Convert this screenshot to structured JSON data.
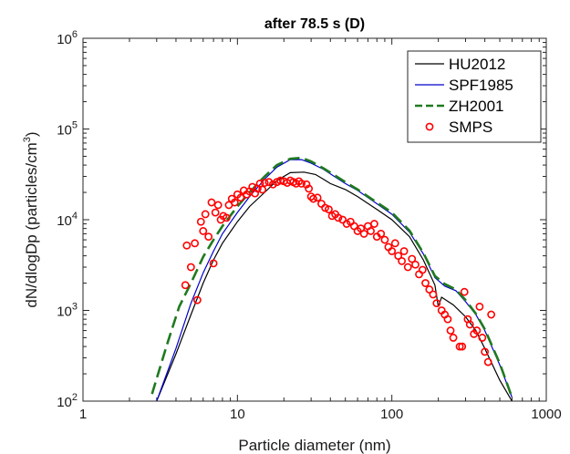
{
  "chart_data": {
    "type": "line",
    "title": "after 78.5 s (D)",
    "xlabel": "Particle diameter (nm)",
    "ylabel": "dN/dlogDp (particles/cm",
    "ylabel_sup": "3",
    "ylabel_close": ")",
    "xscale": "log",
    "yscale": "log",
    "xlim": [
      1,
      1000
    ],
    "ylim": [
      100,
      1000000
    ],
    "x_ticks": [
      {
        "value": 1,
        "label": "1"
      },
      {
        "value": 10,
        "label": "10"
      },
      {
        "value": 100,
        "label": "100"
      },
      {
        "value": 1000,
        "label": "1000"
      }
    ],
    "y_ticks": [
      {
        "value": 100,
        "base": "10",
        "exp": "2"
      },
      {
        "value": 1000,
        "base": "10",
        "exp": "3"
      },
      {
        "value": 10000,
        "base": "10",
        "exp": "4"
      },
      {
        "value": 100000,
        "base": "10",
        "exp": "5"
      },
      {
        "value": 1000000,
        "base": "10",
        "exp": "6"
      }
    ],
    "grid": false,
    "legend_position": "top-right",
    "series": [
      {
        "name": "HU2012",
        "style": "solid",
        "color": "#000000",
        "points": [
          [
            3,
            100
          ],
          [
            4,
            330
          ],
          [
            5,
            900
          ],
          [
            6,
            2000
          ],
          [
            7,
            3600
          ],
          [
            8,
            5500
          ],
          [
            10,
            9500
          ],
          [
            12,
            14000
          ],
          [
            15,
            20000
          ],
          [
            18,
            27000
          ],
          [
            22,
            33000
          ],
          [
            27,
            33500
          ],
          [
            32,
            31500
          ],
          [
            36,
            28000
          ],
          [
            40,
            25000
          ],
          [
            50,
            21500
          ],
          [
            60,
            18000
          ],
          [
            80,
            13000
          ],
          [
            100,
            10000
          ],
          [
            130,
            6500
          ],
          [
            160,
            3600
          ],
          [
            190,
            1900
          ],
          [
            200,
            1100
          ],
          [
            210,
            1400
          ],
          [
            250,
            1150
          ],
          [
            300,
            850
          ],
          [
            350,
            600
          ],
          [
            400,
            380
          ],
          [
            500,
            170
          ],
          [
            600,
            100
          ]
        ]
      },
      {
        "name": "SPF1985",
        "style": "solid",
        "color": "#0000cc",
        "points": [
          [
            3,
            100
          ],
          [
            4,
            380
          ],
          [
            5,
            1200
          ],
          [
            6,
            2600
          ],
          [
            7,
            4500
          ],
          [
            8,
            7000
          ],
          [
            10,
            12000
          ],
          [
            12,
            18000
          ],
          [
            15,
            28000
          ],
          [
            18,
            38000
          ],
          [
            22,
            46000
          ],
          [
            26,
            46000
          ],
          [
            30,
            42000
          ],
          [
            36,
            36000
          ],
          [
            40,
            32000
          ],
          [
            50,
            25000
          ],
          [
            60,
            21000
          ],
          [
            80,
            15000
          ],
          [
            100,
            11500
          ],
          [
            130,
            7300
          ],
          [
            160,
            4200
          ],
          [
            190,
            2300
          ],
          [
            220,
            1850
          ],
          [
            260,
            1650
          ],
          [
            300,
            1250
          ],
          [
            350,
            900
          ],
          [
            400,
            600
          ],
          [
            500,
            250
          ],
          [
            600,
            110
          ]
        ]
      },
      {
        "name": "ZH2001",
        "style": "dashed",
        "color": "#1f7a1f",
        "points": [
          [
            2.8,
            120
          ],
          [
            3.5,
            420
          ],
          [
            4.2,
            1100
          ],
          [
            5,
            2000
          ],
          [
            6,
            3900
          ],
          [
            7,
            6000
          ],
          [
            8,
            8500
          ],
          [
            10,
            14000
          ],
          [
            12,
            20000
          ],
          [
            15,
            30000
          ],
          [
            18,
            40000
          ],
          [
            22,
            47000
          ],
          [
            26,
            48000
          ],
          [
            30,
            44000
          ],
          [
            36,
            37000
          ],
          [
            40,
            33000
          ],
          [
            50,
            26000
          ],
          [
            60,
            21500
          ],
          [
            80,
            15500
          ],
          [
            100,
            12000
          ],
          [
            130,
            7600
          ],
          [
            160,
            4300
          ],
          [
            190,
            2400
          ],
          [
            220,
            1950
          ],
          [
            260,
            1700
          ],
          [
            300,
            1300
          ],
          [
            350,
            920
          ],
          [
            400,
            620
          ],
          [
            500,
            260
          ],
          [
            600,
            110
          ]
        ]
      },
      {
        "name": "SMPS",
        "style": "marker",
        "color": "#ff0000",
        "points": [
          [
            4.6,
            1900
          ],
          [
            4.7,
            5200
          ],
          [
            5.0,
            3000
          ],
          [
            5.3,
            5500
          ],
          [
            5.5,
            1300
          ],
          [
            5.8,
            9500
          ],
          [
            6.0,
            7500
          ],
          [
            6.2,
            11500
          ],
          [
            6.5,
            6500
          ],
          [
            6.8,
            15500
          ],
          [
            7.0,
            3300
          ],
          [
            7.2,
            12000
          ],
          [
            7.5,
            14500
          ],
          [
            7.8,
            10000
          ],
          [
            8.1,
            11000
          ],
          [
            8.5,
            10500
          ],
          [
            8.8,
            14500
          ],
          [
            9.2,
            17000
          ],
          [
            9.6,
            15500
          ],
          [
            10,
            19000
          ],
          [
            10.5,
            17500
          ],
          [
            11,
            21000
          ],
          [
            11.5,
            19000
          ],
          [
            12,
            20500
          ],
          [
            12.5,
            23000
          ],
          [
            13,
            19500
          ],
          [
            13.5,
            22000
          ],
          [
            14,
            25000
          ],
          [
            14.5,
            21500
          ],
          [
            15,
            25500
          ],
          [
            16,
            26000
          ],
          [
            17,
            24500
          ],
          [
            18,
            26000
          ],
          [
            19,
            27000
          ],
          [
            20,
            26500
          ],
          [
            21,
            25500
          ],
          [
            22,
            27000
          ],
          [
            23,
            26000
          ],
          [
            24,
            25000
          ],
          [
            25,
            26500
          ],
          [
            26,
            25000
          ],
          [
            28,
            24500
          ],
          [
            29,
            22000
          ],
          [
            30,
            18000
          ],
          [
            31,
            17000
          ],
          [
            33,
            17500
          ],
          [
            35,
            15000
          ],
          [
            37,
            13500
          ],
          [
            39,
            13000
          ],
          [
            41,
            11000
          ],
          [
            43,
            11500
          ],
          [
            45,
            10500
          ],
          [
            48,
            10000
          ],
          [
            51,
            9000
          ],
          [
            54,
            9500
          ],
          [
            57,
            8500
          ],
          [
            60,
            7500
          ],
          [
            63,
            8000
          ],
          [
            66,
            7000
          ],
          [
            70,
            8500
          ],
          [
            73,
            7500
          ],
          [
            77,
            9000
          ],
          [
            80,
            6500
          ],
          [
            85,
            7000
          ],
          [
            90,
            6000
          ],
          [
            95,
            5000
          ],
          [
            100,
            4500
          ],
          [
            105,
            5500
          ],
          [
            110,
            4000
          ],
          [
            116,
            3500
          ],
          [
            120,
            4500
          ],
          [
            127,
            3000
          ],
          [
            135,
            3700
          ],
          [
            142,
            3200
          ],
          [
            150,
            2500
          ],
          [
            158,
            2800
          ],
          [
            165,
            2000
          ],
          [
            175,
            1700
          ],
          [
            185,
            1500
          ],
          [
            195,
            1200
          ],
          [
            210,
            1000
          ],
          [
            220,
            900
          ],
          [
            230,
            800
          ],
          [
            240,
            600
          ],
          [
            250,
            500
          ],
          [
            275,
            400
          ],
          [
            285,
            400
          ],
          [
            295,
            1600
          ],
          [
            310,
            800
          ],
          [
            320,
            700
          ],
          [
            340,
            550
          ],
          [
            355,
            600
          ],
          [
            370,
            1100
          ],
          [
            385,
            500
          ],
          [
            400,
            350
          ],
          [
            420,
            270
          ],
          [
            440,
            900
          ]
        ]
      }
    ]
  }
}
